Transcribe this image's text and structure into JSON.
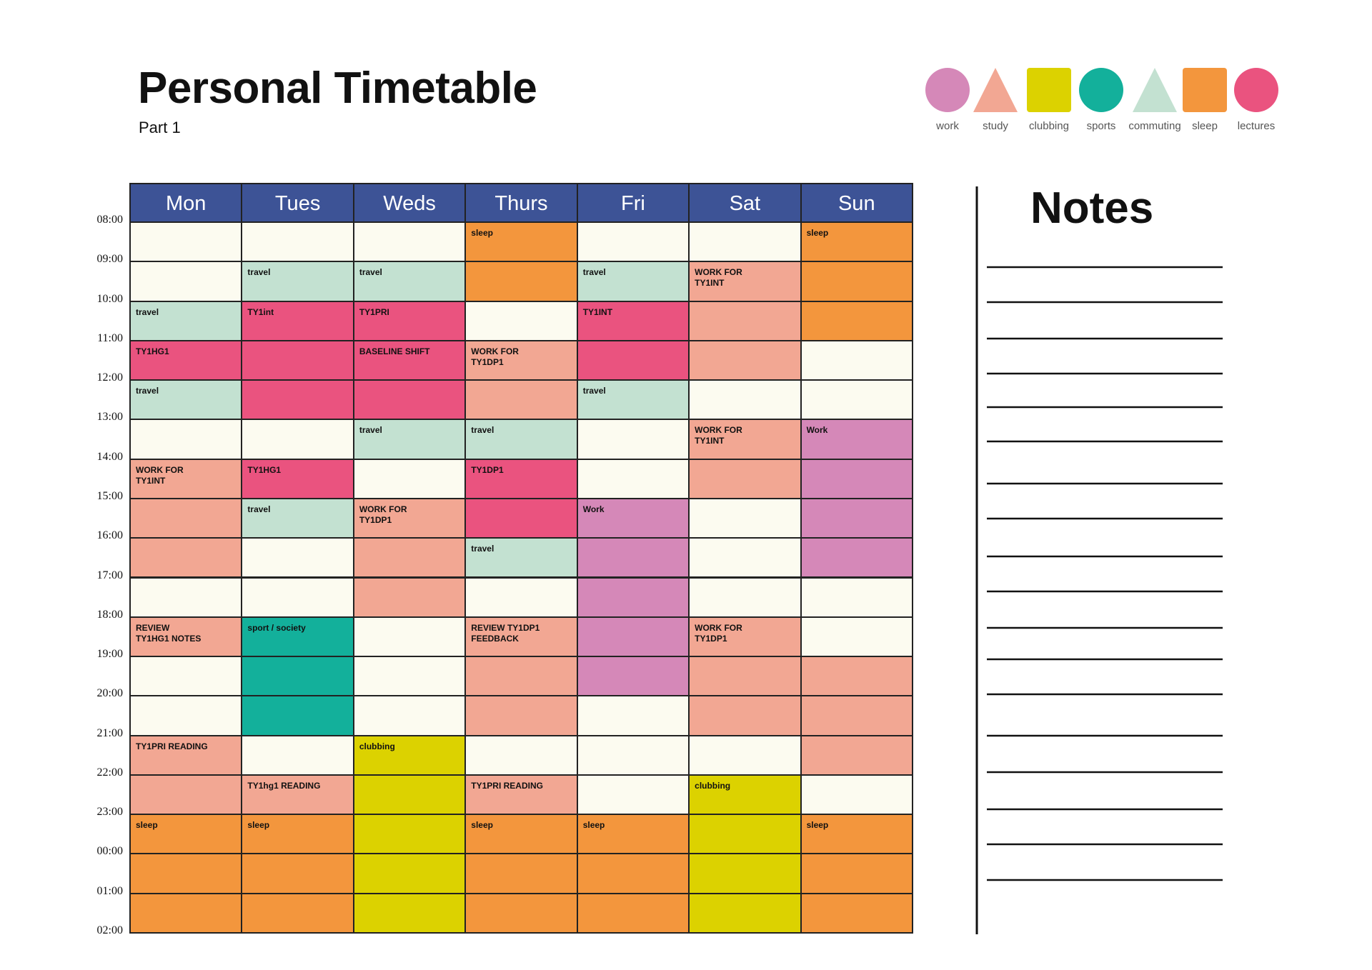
{
  "header": {
    "title": "Personal Timetable",
    "subtitle": "Part 1"
  },
  "legend": [
    {
      "label": "work",
      "shape": "circle",
      "color": "#d588b8"
    },
    {
      "label": "study",
      "shape": "triangle",
      "color": "#f2a793"
    },
    {
      "label": "clubbing",
      "shape": "square",
      "color": "#dcd200"
    },
    {
      "label": "sports",
      "shape": "circle",
      "color": "#13b09b"
    },
    {
      "label": "commuting",
      "shape": "triangle",
      "color": "#c3e1d1"
    },
    {
      "label": "sleep",
      "shape": "square",
      "color": "#f3963d"
    },
    {
      "label": "lectures",
      "shape": "circle",
      "color": "#ea537f"
    }
  ],
  "grid": {
    "days": [
      "Mon",
      "Tues",
      "Weds",
      "Thurs",
      "Fri",
      "Sat",
      "Sun"
    ],
    "times": [
      "08:00",
      "09:00",
      "10:00",
      "11:00",
      "12:00",
      "13:00",
      "14:00",
      "15:00",
      "16:00",
      "17:00",
      "18:00",
      "19:00",
      "20:00",
      "21:00",
      "22:00",
      "23:00",
      "00:00",
      "01:00",
      "02:00"
    ],
    "rows": [
      [
        null,
        null,
        null,
        {
          "kind": "sleep",
          "label": "sleep"
        },
        null,
        null,
        {
          "kind": "sleep",
          "label": "sleep"
        }
      ],
      [
        null,
        {
          "kind": "commuting",
          "label": "travel"
        },
        {
          "kind": "commuting",
          "label": "travel"
        },
        {
          "kind": "sleep"
        },
        {
          "kind": "commuting",
          "label": "travel"
        },
        {
          "kind": "study",
          "label": "WORK FOR\nTY1INT"
        },
        {
          "kind": "sleep"
        }
      ],
      [
        {
          "kind": "commuting",
          "label": "travel"
        },
        {
          "kind": "lectures",
          "label": "TY1int"
        },
        {
          "kind": "lectures",
          "label": "TY1PRI"
        },
        null,
        {
          "kind": "lectures",
          "label": "TY1INT"
        },
        {
          "kind": "study"
        },
        {
          "kind": "sleep"
        }
      ],
      [
        {
          "kind": "lectures",
          "label": "TY1HG1"
        },
        {
          "kind": "lectures"
        },
        {
          "kind": "lectures",
          "label": "BASELINE SHIFT"
        },
        {
          "kind": "study",
          "label": "WORK FOR\nTY1DP1"
        },
        {
          "kind": "lectures"
        },
        {
          "kind": "study"
        },
        null
      ],
      [
        {
          "kind": "commuting",
          "label": "travel"
        },
        {
          "kind": "lectures"
        },
        {
          "kind": "lectures"
        },
        {
          "kind": "study"
        },
        {
          "kind": "commuting",
          "label": "travel"
        },
        null,
        null
      ],
      [
        null,
        null,
        {
          "kind": "commuting",
          "label": "travel"
        },
        {
          "kind": "commuting",
          "label": "travel"
        },
        null,
        {
          "kind": "study",
          "label": "WORK FOR\nTY1INT"
        },
        {
          "kind": "work",
          "label": "Work"
        }
      ],
      [
        {
          "kind": "study",
          "label": "WORK FOR\nTY1INT"
        },
        {
          "kind": "lectures",
          "label": "TY1HG1"
        },
        null,
        {
          "kind": "lectures",
          "label": "TY1DP1"
        },
        null,
        {
          "kind": "study"
        },
        {
          "kind": "work"
        }
      ],
      [
        {
          "kind": "study"
        },
        {
          "kind": "commuting",
          "label": "travel"
        },
        {
          "kind": "study",
          "label": "WORK FOR\nTY1DP1"
        },
        {
          "kind": "lectures"
        },
        {
          "kind": "work",
          "label": "Work"
        },
        null,
        {
          "kind": "work"
        }
      ],
      [
        {
          "kind": "study"
        },
        null,
        {
          "kind": "study"
        },
        {
          "kind": "commuting",
          "label": "travel"
        },
        {
          "kind": "work"
        },
        null,
        {
          "kind": "work"
        }
      ],
      [
        null,
        null,
        {
          "kind": "study"
        },
        null,
        {
          "kind": "work"
        },
        null,
        null
      ],
      [
        {
          "kind": "study",
          "label": "REVIEW\nTY1HG1 NOTES"
        },
        {
          "kind": "sports",
          "label": "sport / society"
        },
        null,
        {
          "kind": "study",
          "label": "REVIEW TY1DP1\nFEEDBACK"
        },
        {
          "kind": "work"
        },
        {
          "kind": "study",
          "label": "WORK FOR\nTY1DP1"
        },
        null
      ],
      [
        null,
        {
          "kind": "sports"
        },
        null,
        {
          "kind": "study"
        },
        {
          "kind": "work"
        },
        {
          "kind": "study"
        },
        {
          "kind": "study"
        }
      ],
      [
        null,
        {
          "kind": "sports"
        },
        null,
        {
          "kind": "study"
        },
        null,
        {
          "kind": "study"
        },
        {
          "kind": "study"
        }
      ],
      [
        {
          "kind": "study",
          "label": "TY1PRI READING"
        },
        null,
        {
          "kind": "clubbing",
          "label": "clubbing"
        },
        null,
        null,
        null,
        {
          "kind": "study"
        }
      ],
      [
        {
          "kind": "study"
        },
        {
          "kind": "study",
          "label": "TY1hg1 READING"
        },
        {
          "kind": "clubbing"
        },
        {
          "kind": "study",
          "label": "TY1PRI READING"
        },
        null,
        {
          "kind": "clubbing",
          "label": "clubbing"
        },
        null
      ],
      [
        {
          "kind": "sleep",
          "label": "sleep"
        },
        {
          "kind": "sleep",
          "label": "sleep"
        },
        {
          "kind": "clubbing"
        },
        {
          "kind": "sleep",
          "label": "sleep"
        },
        {
          "kind": "sleep",
          "label": "sleep"
        },
        {
          "kind": "clubbing"
        },
        {
          "kind": "sleep",
          "label": "sleep"
        }
      ],
      [
        {
          "kind": "sleep"
        },
        {
          "kind": "sleep"
        },
        {
          "kind": "clubbing"
        },
        {
          "kind": "sleep"
        },
        {
          "kind": "sleep"
        },
        {
          "kind": "clubbing"
        },
        {
          "kind": "sleep"
        }
      ],
      [
        {
          "kind": "sleep"
        },
        {
          "kind": "sleep"
        },
        {
          "kind": "clubbing"
        },
        {
          "kind": "sleep"
        },
        {
          "kind": "sleep"
        },
        {
          "kind": "clubbing"
        },
        {
          "kind": "sleep"
        }
      ]
    ]
  },
  "notes": {
    "title": "Notes"
  }
}
